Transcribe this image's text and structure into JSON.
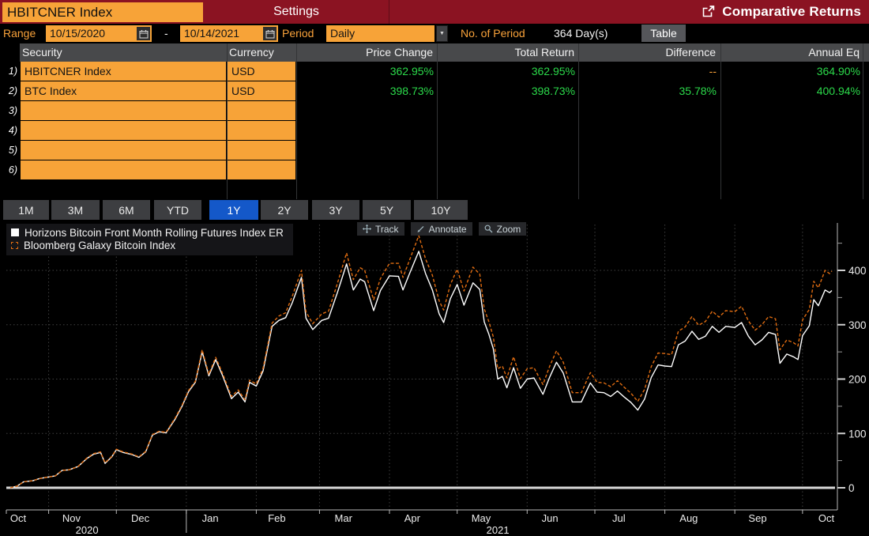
{
  "titlebar": {
    "security": "HBITCNER Index",
    "settings": "Settings",
    "screen_title": "Comparative Returns"
  },
  "controls": {
    "range_label": "Range",
    "range_start": "10/15/2020",
    "range_separator": "-",
    "range_end": "10/14/2021",
    "period_label": "Period",
    "period_value": "Daily",
    "dropdown_glyph": "▼",
    "num_period_label": "No. of Period",
    "num_period_value": "364 Day(s)",
    "table_button": "Table"
  },
  "table": {
    "headers": [
      "Security",
      "Currency",
      "Price Change",
      "Total Return",
      "Difference",
      "Annual Eq"
    ],
    "rows": [
      {
        "num": "1)",
        "security": "HBITCNER Index",
        "currency": "USD",
        "price_change": "362.95%",
        "total_return": "362.95%",
        "difference": "--",
        "annual_eq": "364.90%"
      },
      {
        "num": "2)",
        "security": "BTC Index",
        "currency": "USD",
        "price_change": "398.73%",
        "total_return": "398.73%",
        "difference": "35.78%",
        "annual_eq": "400.94%"
      },
      {
        "num": "3)",
        "security": "",
        "currency": "",
        "price_change": "",
        "total_return": "",
        "difference": "",
        "annual_eq": ""
      },
      {
        "num": "4)",
        "security": "",
        "currency": "",
        "price_change": "",
        "total_return": "",
        "difference": "",
        "annual_eq": ""
      },
      {
        "num": "5)",
        "security": "",
        "currency": "",
        "price_change": "",
        "total_return": "",
        "difference": "",
        "annual_eq": ""
      },
      {
        "num": "6)",
        "security": "",
        "currency": "",
        "price_change": "",
        "total_return": "",
        "difference": "",
        "annual_eq": ""
      }
    ]
  },
  "range_tabs": [
    "1M",
    "3M",
    "6M",
    "YTD",
    "1Y",
    "2Y",
    "3Y",
    "5Y",
    "10Y"
  ],
  "selected_tab": "1Y",
  "chart_toolbar": [
    "Track",
    "Annotate",
    "Zoom"
  ],
  "colors": {
    "bar_red": "#8b1322",
    "amber": "#f7a338",
    "amber_text": "#f9a23a",
    "green": "#2bd94a",
    "tab_blue": "#1458c9",
    "series_white": "#ffffff",
    "series_orange": "#e06c11"
  },
  "chart_data": {
    "type": "line",
    "title": "",
    "xlabel": "",
    "ylabel": "",
    "x_start": "2020-10-15",
    "x_end": "2021-10-14",
    "y_range": [
      -41,
      487
    ],
    "y_ticks": [
      0,
      100,
      200,
      300,
      400
    ],
    "y_minor_ticks": [
      50,
      150,
      250,
      350,
      450
    ],
    "month_boundaries": [
      "2020-11-01",
      "2020-12-01",
      "2021-01-01",
      "2021-02-01",
      "2021-03-01",
      "2021-04-01",
      "2021-05-01",
      "2021-06-01",
      "2021-07-01",
      "2021-08-01",
      "2021-09-01",
      "2021-10-01"
    ],
    "month_labels": [
      "Oct",
      "Nov",
      "Dec",
      "Jan",
      "Feb",
      "Mar",
      "Apr",
      "May",
      "Jun",
      "Jul",
      "Aug",
      "Sep",
      "Oct"
    ],
    "year_labels": [
      {
        "text": "2020",
        "x_date": "2020-11-18"
      },
      {
        "text": "2021",
        "x_date": "2021-05-19"
      }
    ],
    "legend": [
      {
        "label": "Horizons Bitcoin Front Month Rolling Futures Index ER",
        "color": "#ffffff",
        "style": "solid"
      },
      {
        "label": "Bloomberg Galaxy Bitcoin Index",
        "color": "#e06c11",
        "style": "dashed"
      }
    ],
    "x": [
      "2020-10-15",
      "2020-10-18",
      "2020-10-21",
      "2020-10-25",
      "2020-10-28",
      "2020-11-01",
      "2020-11-04",
      "2020-11-07",
      "2020-11-10",
      "2020-11-14",
      "2020-11-18",
      "2020-11-21",
      "2020-11-24",
      "2020-11-26",
      "2020-11-29",
      "2020-12-01",
      "2020-12-04",
      "2020-12-08",
      "2020-12-11",
      "2020-12-14",
      "2020-12-17",
      "2020-12-20",
      "2020-12-23",
      "2020-12-27",
      "2020-12-30",
      "2021-01-02",
      "2021-01-05",
      "2021-01-08",
      "2021-01-11",
      "2021-01-14",
      "2021-01-17",
      "2021-01-21",
      "2021-01-24",
      "2021-01-27",
      "2021-01-29",
      "2021-02-01",
      "2021-02-04",
      "2021-02-08",
      "2021-02-11",
      "2021-02-14",
      "2021-02-17",
      "2021-02-21",
      "2021-02-23",
      "2021-02-26",
      "2021-03-02",
      "2021-03-05",
      "2021-03-09",
      "2021-03-13",
      "2021-03-16",
      "2021-03-19",
      "2021-03-21",
      "2021-03-25",
      "2021-03-28",
      "2021-04-01",
      "2021-04-05",
      "2021-04-07",
      "2021-04-10",
      "2021-04-14",
      "2021-04-17",
      "2021-04-20",
      "2021-04-23",
      "2021-04-25",
      "2021-04-28",
      "2021-05-01",
      "2021-05-04",
      "2021-05-08",
      "2021-05-11",
      "2021-05-13",
      "2021-05-15",
      "2021-05-17",
      "2021-05-19",
      "2021-05-21",
      "2021-05-23",
      "2021-05-26",
      "2021-05-29",
      "2021-06-01",
      "2021-06-04",
      "2021-06-08",
      "2021-06-11",
      "2021-06-14",
      "2021-06-17",
      "2021-06-21",
      "2021-06-25",
      "2021-06-29",
      "2021-07-02",
      "2021-07-05",
      "2021-07-08",
      "2021-07-11",
      "2021-07-14",
      "2021-07-17",
      "2021-07-20",
      "2021-07-23",
      "2021-07-26",
      "2021-07-29",
      "2021-08-01",
      "2021-08-04",
      "2021-08-07",
      "2021-08-10",
      "2021-08-13",
      "2021-08-16",
      "2021-08-19",
      "2021-08-22",
      "2021-08-25",
      "2021-08-28",
      "2021-09-01",
      "2021-09-04",
      "2021-09-07",
      "2021-09-10",
      "2021-09-13",
      "2021-09-16",
      "2021-09-19",
      "2021-09-21",
      "2021-09-24",
      "2021-09-27",
      "2021-09-29",
      "2021-10-01",
      "2021-10-04",
      "2021-10-06",
      "2021-10-08",
      "2021-10-11",
      "2021-10-13",
      "2021-10-14"
    ],
    "series": [
      {
        "name": "Horizons Bitcoin Front Month Rolling Futures Index ER",
        "color": "#ffffff",
        "style": "solid",
        "values": [
          0,
          3,
          11,
          13,
          17,
          20,
          22,
          32,
          33,
          39,
          54,
          62,
          65,
          45,
          57,
          70,
          65,
          61,
          56,
          66,
          97,
          103,
          101,
          126,
          149,
          177,
          194,
          250,
          206,
          236,
          207,
          164,
          176,
          158,
          194,
          187,
          215,
          297,
          308,
          313,
          341,
          387,
          312,
          291,
          308,
          312,
          360,
          412,
          364,
          384,
          379,
          326,
          363,
          390,
          389,
          364,
          395,
          435,
          394,
          364,
          320,
          304,
          348,
          374,
          336,
          377,
          365,
          305,
          283,
          256,
          200,
          205,
          184,
          221,
          183,
          200,
          202,
          172,
          204,
          231,
          211,
          158,
          158,
          193,
          176,
          175,
          168,
          178,
          167,
          157,
          143,
          163,
          203,
          226,
          224,
          223,
          263,
          270,
          288,
          273,
          279,
          297,
          286,
          297,
          295,
          304,
          279,
          263,
          272,
          286,
          282,
          229,
          246,
          241,
          236,
          280,
          298,
          346,
          335,
          364,
          359,
          362.95
        ]
      },
      {
        "name": "Bloomberg Galaxy Bitcoin Index",
        "color": "#e06c11",
        "style": "dashed",
        "values": [
          0,
          3,
          11,
          13,
          17,
          20,
          22,
          32,
          33,
          39,
          55,
          63,
          66,
          46,
          58,
          71,
          66,
          62,
          57,
          67,
          98,
          104,
          102,
          128,
          151,
          179,
          196,
          254,
          209,
          240,
          211,
          168,
          180,
          162,
          198,
          191,
          220,
          303,
          316,
          322,
          353,
          400,
          324,
          302,
          320,
          325,
          377,
          432,
          383,
          405,
          400,
          346,
          385,
          413,
          413,
          387,
          420,
          464,
          421,
          391,
          344,
          327,
          374,
          402,
          362,
          406,
          393,
          329,
          306,
          278,
          219,
          224,
          202,
          241,
          201,
          219,
          221,
          190,
          224,
          252,
          231,
          175,
          175,
          212,
          194,
          193,
          186,
          197,
          185,
          174,
          159,
          181,
          223,
          248,
          247,
          245,
          288,
          296,
          315,
          299,
          306,
          325,
          314,
          326,
          324,
          334,
          307,
          290,
          300,
          315,
          311,
          254,
          272,
          267,
          261,
          309,
          328,
          380,
          368,
          400,
          394,
          398.73
        ]
      }
    ]
  }
}
